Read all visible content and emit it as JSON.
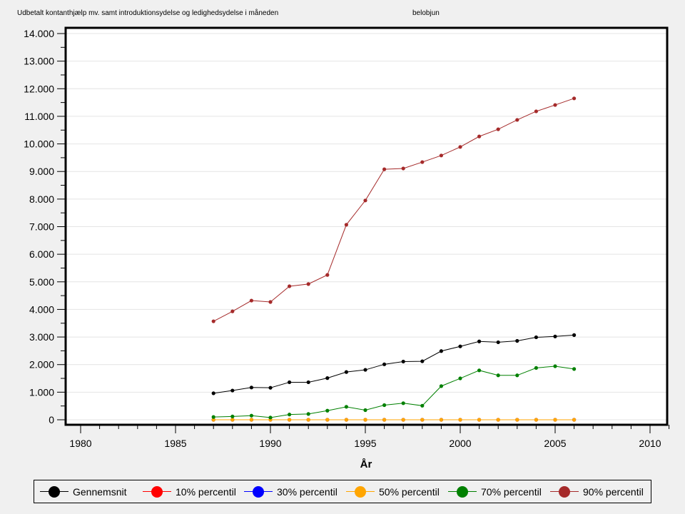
{
  "header": {
    "title": "Udbetalt kontanthjælp mv. samt introduktionsydelse og ledighedsydelse i måneden",
    "variable": "belobjun"
  },
  "chart_data": {
    "type": "line",
    "title": "Udbetalt kontanthjælp mv. samt introduktionsydelse og ledighedsydelse i måneden",
    "xlabel": "År",
    "ylabel": "",
    "xlim": [
      1979,
      2011
    ],
    "ylim": [
      0,
      14000
    ],
    "x_ticks": [
      "1980",
      "1985",
      "1990",
      "1995",
      "2000",
      "2005",
      "2010"
    ],
    "y_ticks": [
      "0",
      "1.000",
      "2.000",
      "3.000",
      "4.000",
      "5.000",
      "6.000",
      "7.000",
      "8.000",
      "9.000",
      "10.000",
      "11.000",
      "12.000",
      "13.000",
      "14.000"
    ],
    "grid": true,
    "legend_position": "bottom",
    "x": [
      1987,
      1988,
      1989,
      1990,
      1991,
      1992,
      1993,
      1994,
      1995,
      1996,
      1997,
      1998,
      1999,
      2000,
      2001,
      2002,
      2003,
      2004,
      2005,
      2006
    ],
    "series": [
      {
        "name": "Gennemsnit",
        "color": "#000000",
        "values": [
          960,
          1060,
          1170,
          1160,
          1360,
          1360,
          1510,
          1730,
          1810,
          2010,
          2110,
          2120,
          2490,
          2660,
          2840,
          2810,
          2860,
          2990,
          3020,
          3070
        ]
      },
      {
        "name": "10% percentil",
        "color": "#ff0000",
        "values": [
          0,
          0,
          0,
          0,
          0,
          0,
          0,
          0,
          0,
          0,
          0,
          0,
          0,
          0,
          0,
          0,
          0,
          0,
          0,
          0
        ]
      },
      {
        "name": "30% percentil",
        "color": "#0000ff",
        "values": [
          0,
          0,
          0,
          0,
          0,
          0,
          0,
          0,
          0,
          0,
          0,
          0,
          0,
          0,
          0,
          0,
          0,
          0,
          0,
          0
        ]
      },
      {
        "name": "50% percentil",
        "color": "#ffa500",
        "values": [
          0,
          0,
          0,
          0,
          0,
          0,
          0,
          0,
          0,
          0,
          0,
          0,
          0,
          0,
          0,
          0,
          0,
          0,
          0,
          0
        ]
      },
      {
        "name": "70% percentil",
        "color": "#008000",
        "values": [
          100,
          120,
          150,
          80,
          190,
          210,
          330,
          470,
          350,
          530,
          600,
          510,
          1220,
          1500,
          1790,
          1610,
          1610,
          1880,
          1940,
          1840
        ]
      },
      {
        "name": "90% percentil",
        "color": "#a52a2a",
        "values": [
          3570,
          3930,
          4320,
          4270,
          4840,
          4920,
          5250,
          7070,
          7950,
          9080,
          9110,
          9340,
          9580,
          9890,
          10270,
          10530,
          10870,
          11180,
          11410,
          11650
        ]
      }
    ]
  }
}
